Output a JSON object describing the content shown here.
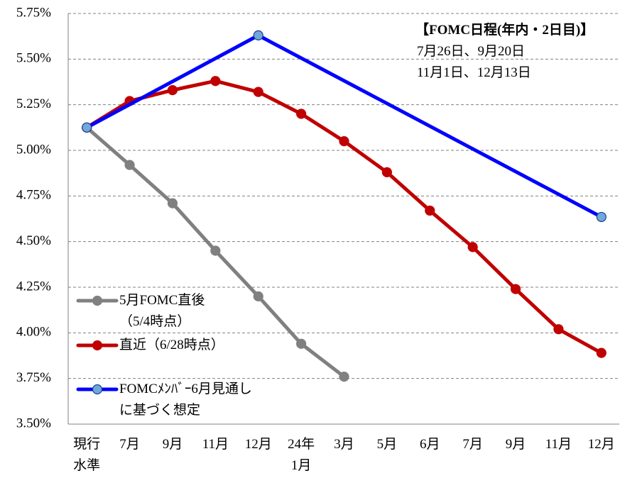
{
  "chart_data": {
    "type": "line",
    "categories": [
      "現行\n水準",
      "7月",
      "9月",
      "11月",
      "12月",
      "24年\n1月",
      "3月",
      "5月",
      "6月",
      "7月",
      "9月",
      "11月",
      "12月"
    ],
    "series": [
      {
        "name": "5月FOMC直後\n（5/4時点）",
        "color": "#808080",
        "marker_fill": "#808080",
        "values": [
          5.125,
          4.92,
          4.71,
          4.45,
          4.2,
          3.94,
          3.76,
          null,
          null,
          null,
          null,
          null,
          null
        ]
      },
      {
        "name": "直近（6/28時点）",
        "color": "#c00000",
        "marker_fill": "#c00000",
        "values": [
          5.125,
          5.27,
          5.33,
          5.38,
          5.32,
          5.2,
          5.05,
          4.88,
          4.67,
          4.47,
          4.24,
          4.02,
          3.89
        ]
      },
      {
        "name": "FOMCﾒﾝﾊﾞｰ6月見通し\nに基づく想定",
        "color": "#0000ff",
        "marker_fill": "#6fa8dc",
        "connect_gaps": true,
        "values": [
          5.125,
          null,
          null,
          null,
          5.63,
          null,
          null,
          null,
          null,
          null,
          null,
          null,
          4.635
        ]
      }
    ],
    "ylim": [
      3.5,
      5.75
    ],
    "yticks": [
      {
        "value": 3.5,
        "label": "3.50%"
      },
      {
        "value": 3.75,
        "label": "3.75%"
      },
      {
        "value": 4.0,
        "label": "4.00%"
      },
      {
        "value": 4.25,
        "label": "4.25%"
      },
      {
        "value": 4.5,
        "label": "4.50%"
      },
      {
        "value": 4.75,
        "label": "4.75%"
      },
      {
        "value": 5.0,
        "label": "5.00%"
      },
      {
        "value": 5.25,
        "label": "5.25%"
      },
      {
        "value": 5.5,
        "label": "5.50%"
      },
      {
        "value": 5.75,
        "label": "5.75%"
      }
    ],
    "grid": true,
    "annotation": {
      "title": "【FOMC日程(年内・2日目)】",
      "lines": [
        "7月26日、9月20日",
        "11月1日、12月13日"
      ]
    }
  }
}
